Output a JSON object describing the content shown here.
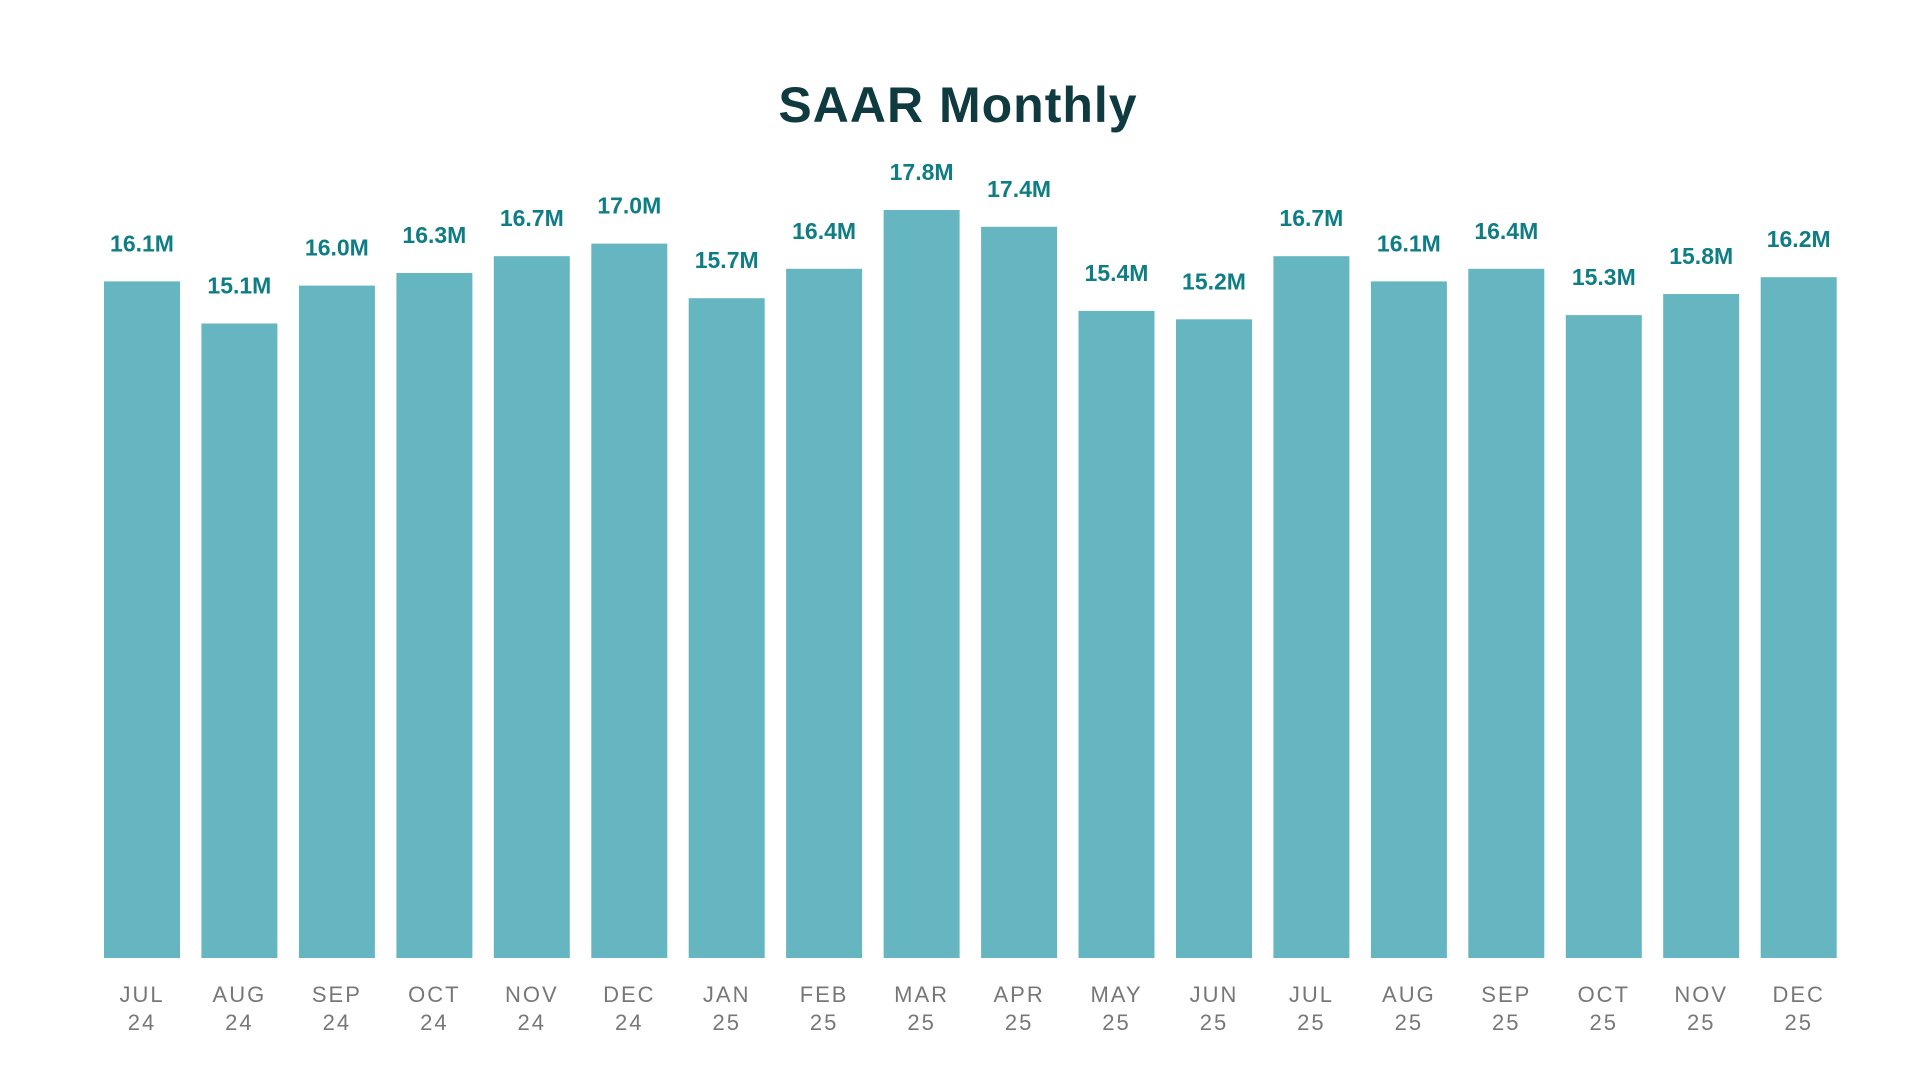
{
  "chart_data": {
    "type": "bar",
    "title": "SAAR Monthly",
    "xlabel": "",
    "ylabel": "",
    "categories": [
      [
        "JUL",
        "24"
      ],
      [
        "AUG",
        "24"
      ],
      [
        "SEP",
        "24"
      ],
      [
        "OCT",
        "24"
      ],
      [
        "NOV",
        "24"
      ],
      [
        "DEC",
        "24"
      ],
      [
        "JAN",
        "25"
      ],
      [
        "FEB",
        "25"
      ],
      [
        "MAR",
        "25"
      ],
      [
        "APR",
        "25"
      ],
      [
        "MAY",
        "25"
      ],
      [
        "JUN",
        "25"
      ],
      [
        "JUL",
        "25"
      ],
      [
        "AUG",
        "25"
      ],
      [
        "SEP",
        "25"
      ],
      [
        "OCT",
        "25"
      ],
      [
        "NOV",
        "25"
      ],
      [
        "DEC",
        "25"
      ]
    ],
    "values": [
      16.1,
      15.1,
      16.0,
      16.3,
      16.7,
      17.0,
      15.7,
      16.4,
      17.8,
      17.4,
      15.4,
      15.2,
      16.7,
      16.1,
      16.4,
      15.3,
      15.8,
      16.2
    ],
    "data_labels": [
      "16.1M",
      "15.1M",
      "16.0M",
      "16.3M",
      "16.7M",
      "17.0M",
      "15.7M",
      "16.4M",
      "17.8M",
      "17.4M",
      "15.4M",
      "15.2M",
      "16.7M",
      "16.1M",
      "16.4M",
      "15.3M",
      "15.8M",
      "16.2M"
    ],
    "unit": "M",
    "ylim": [
      0,
      17.8
    ],
    "grid": false,
    "legend": "none",
    "colors": {
      "bar": "#66b6c2",
      "data_label": "#0f7e84",
      "tick_label": "#777777",
      "title": "#0f3a40"
    }
  }
}
